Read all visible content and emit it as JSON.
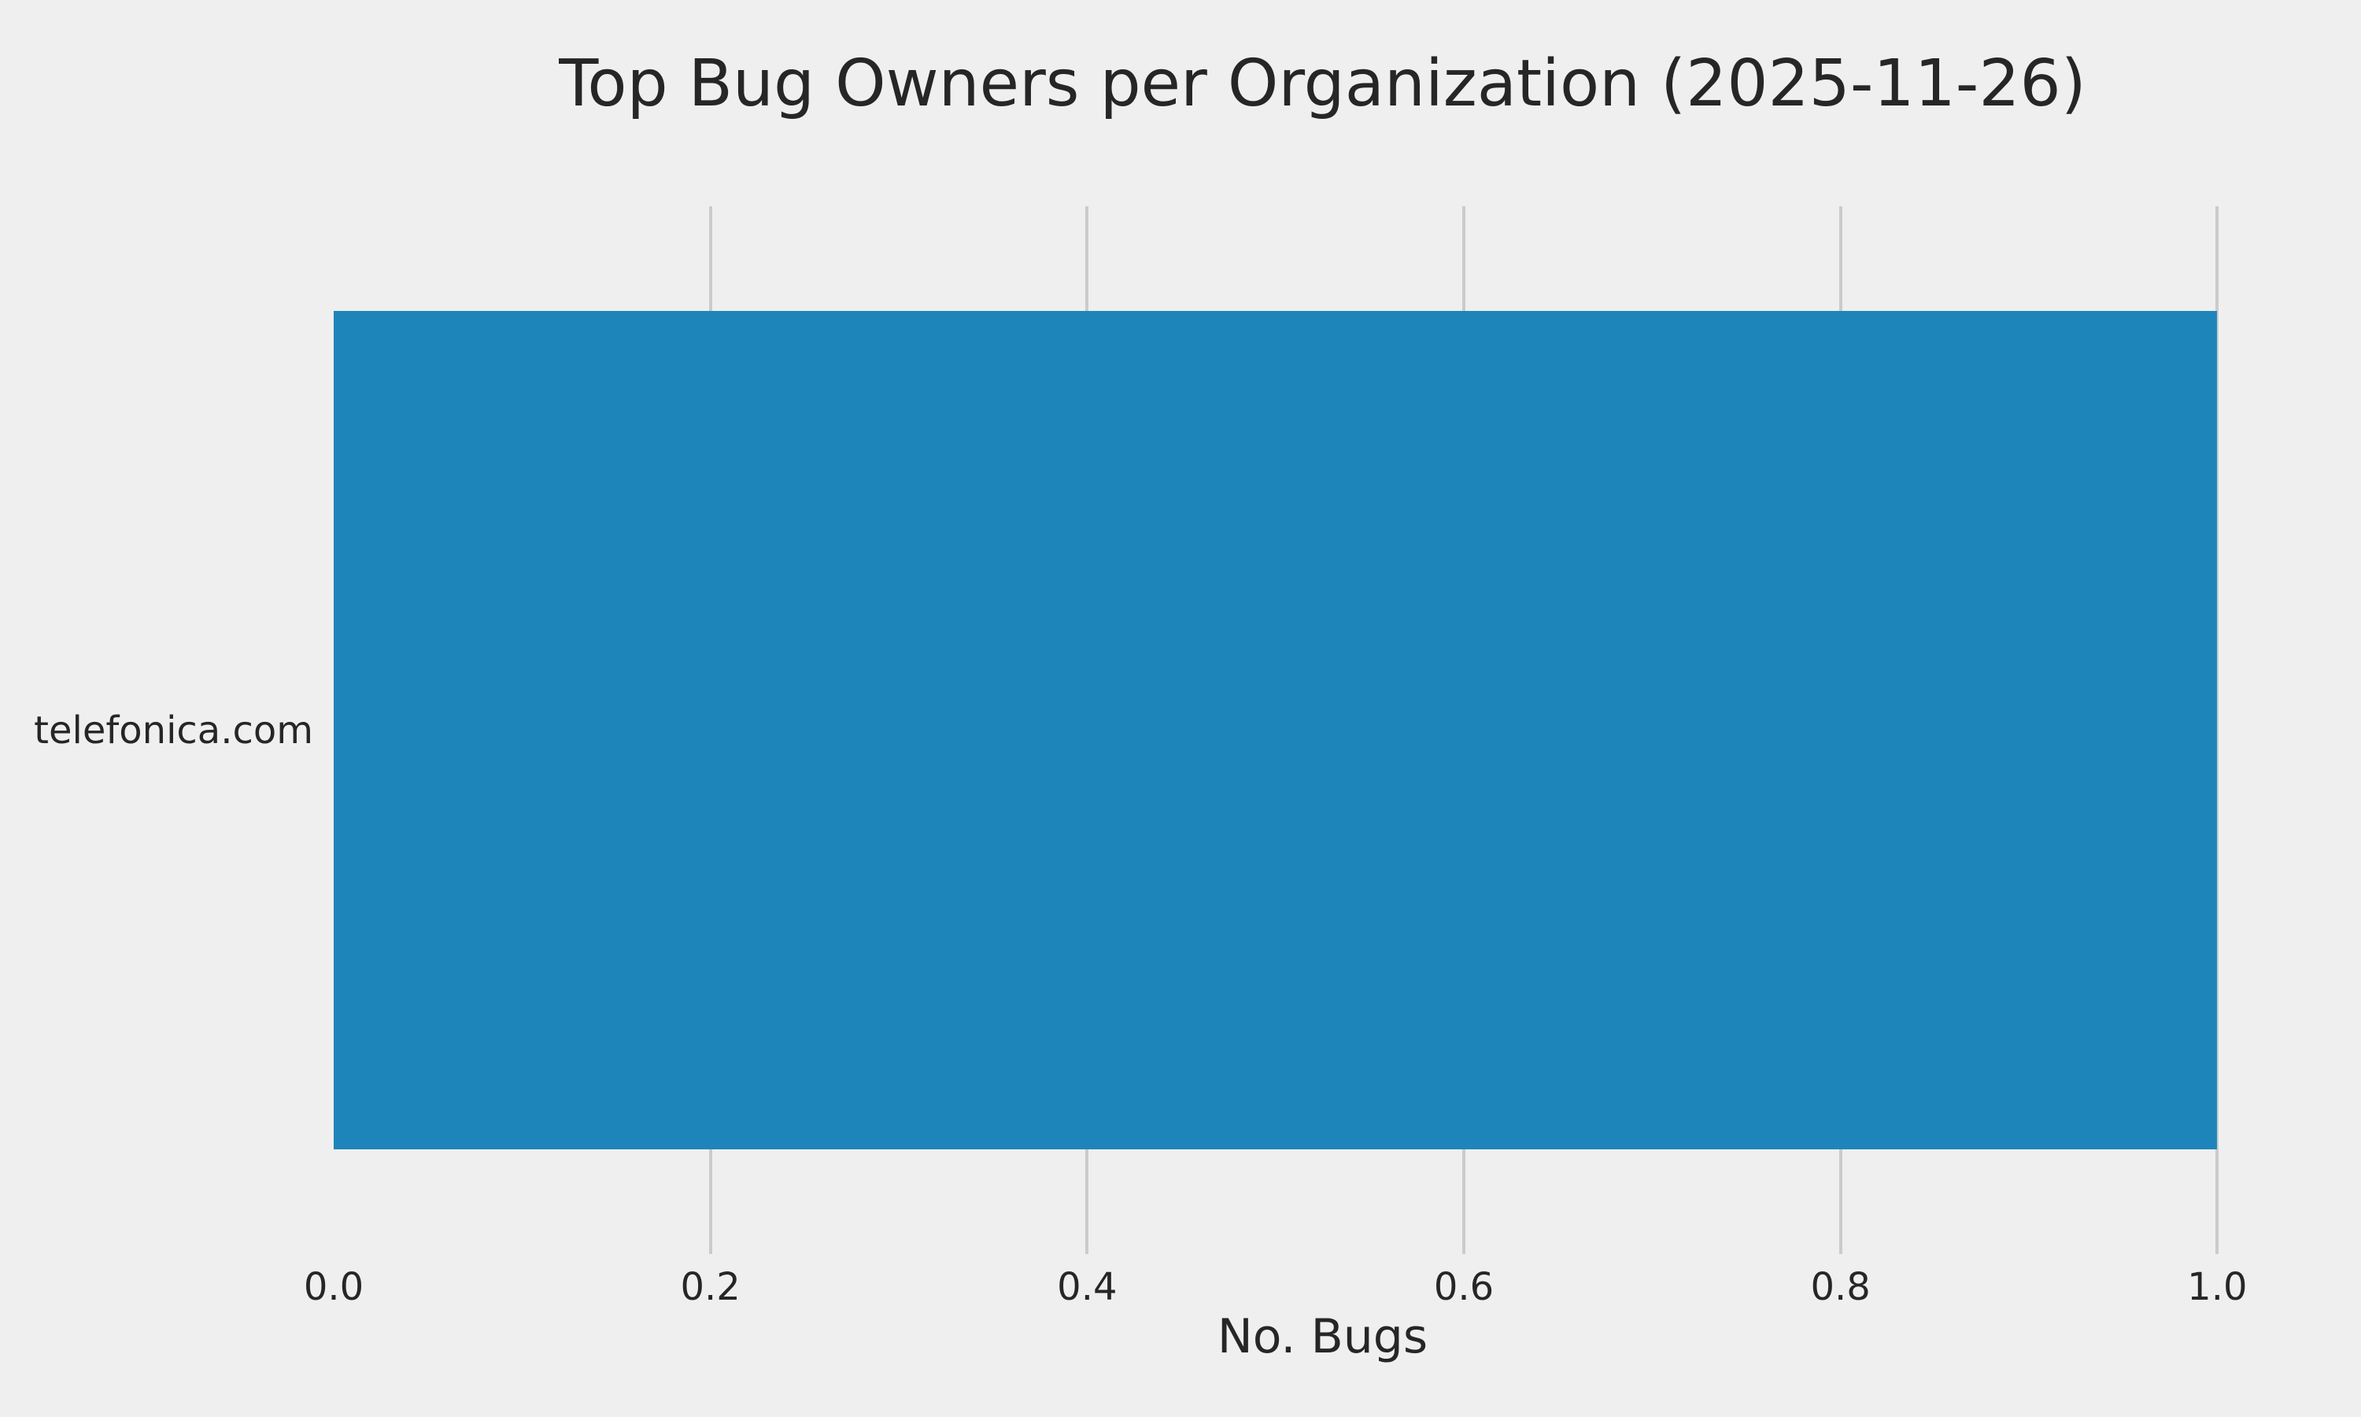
{
  "chart_data": {
    "type": "bar",
    "orientation": "horizontal",
    "title": "Top Bug Owners per Organization (2025-11-26)",
    "xlabel": "No. Bugs",
    "ylabel": "",
    "categories": [
      "telefonica.com"
    ],
    "values": [
      1.0
    ],
    "xlim": [
      0,
      1.05
    ],
    "xticks": [
      {
        "value": 0.0,
        "label": "0.0",
        "gridline": false
      },
      {
        "value": 0.2,
        "label": "0.2",
        "gridline": true
      },
      {
        "value": 0.4,
        "label": "0.4",
        "gridline": true
      },
      {
        "value": 0.6,
        "label": "0.6",
        "gridline": true
      },
      {
        "value": 0.8,
        "label": "0.8",
        "gridline": true
      },
      {
        "value": 1.0,
        "label": "1.0",
        "gridline": true
      }
    ],
    "grid": true,
    "legend": false,
    "bar_height_fraction": 0.8,
    "colors": {
      "bar": "#1e85ba",
      "background": "#efefef",
      "gridline": "#cbcbcb",
      "text": "#262626"
    }
  }
}
